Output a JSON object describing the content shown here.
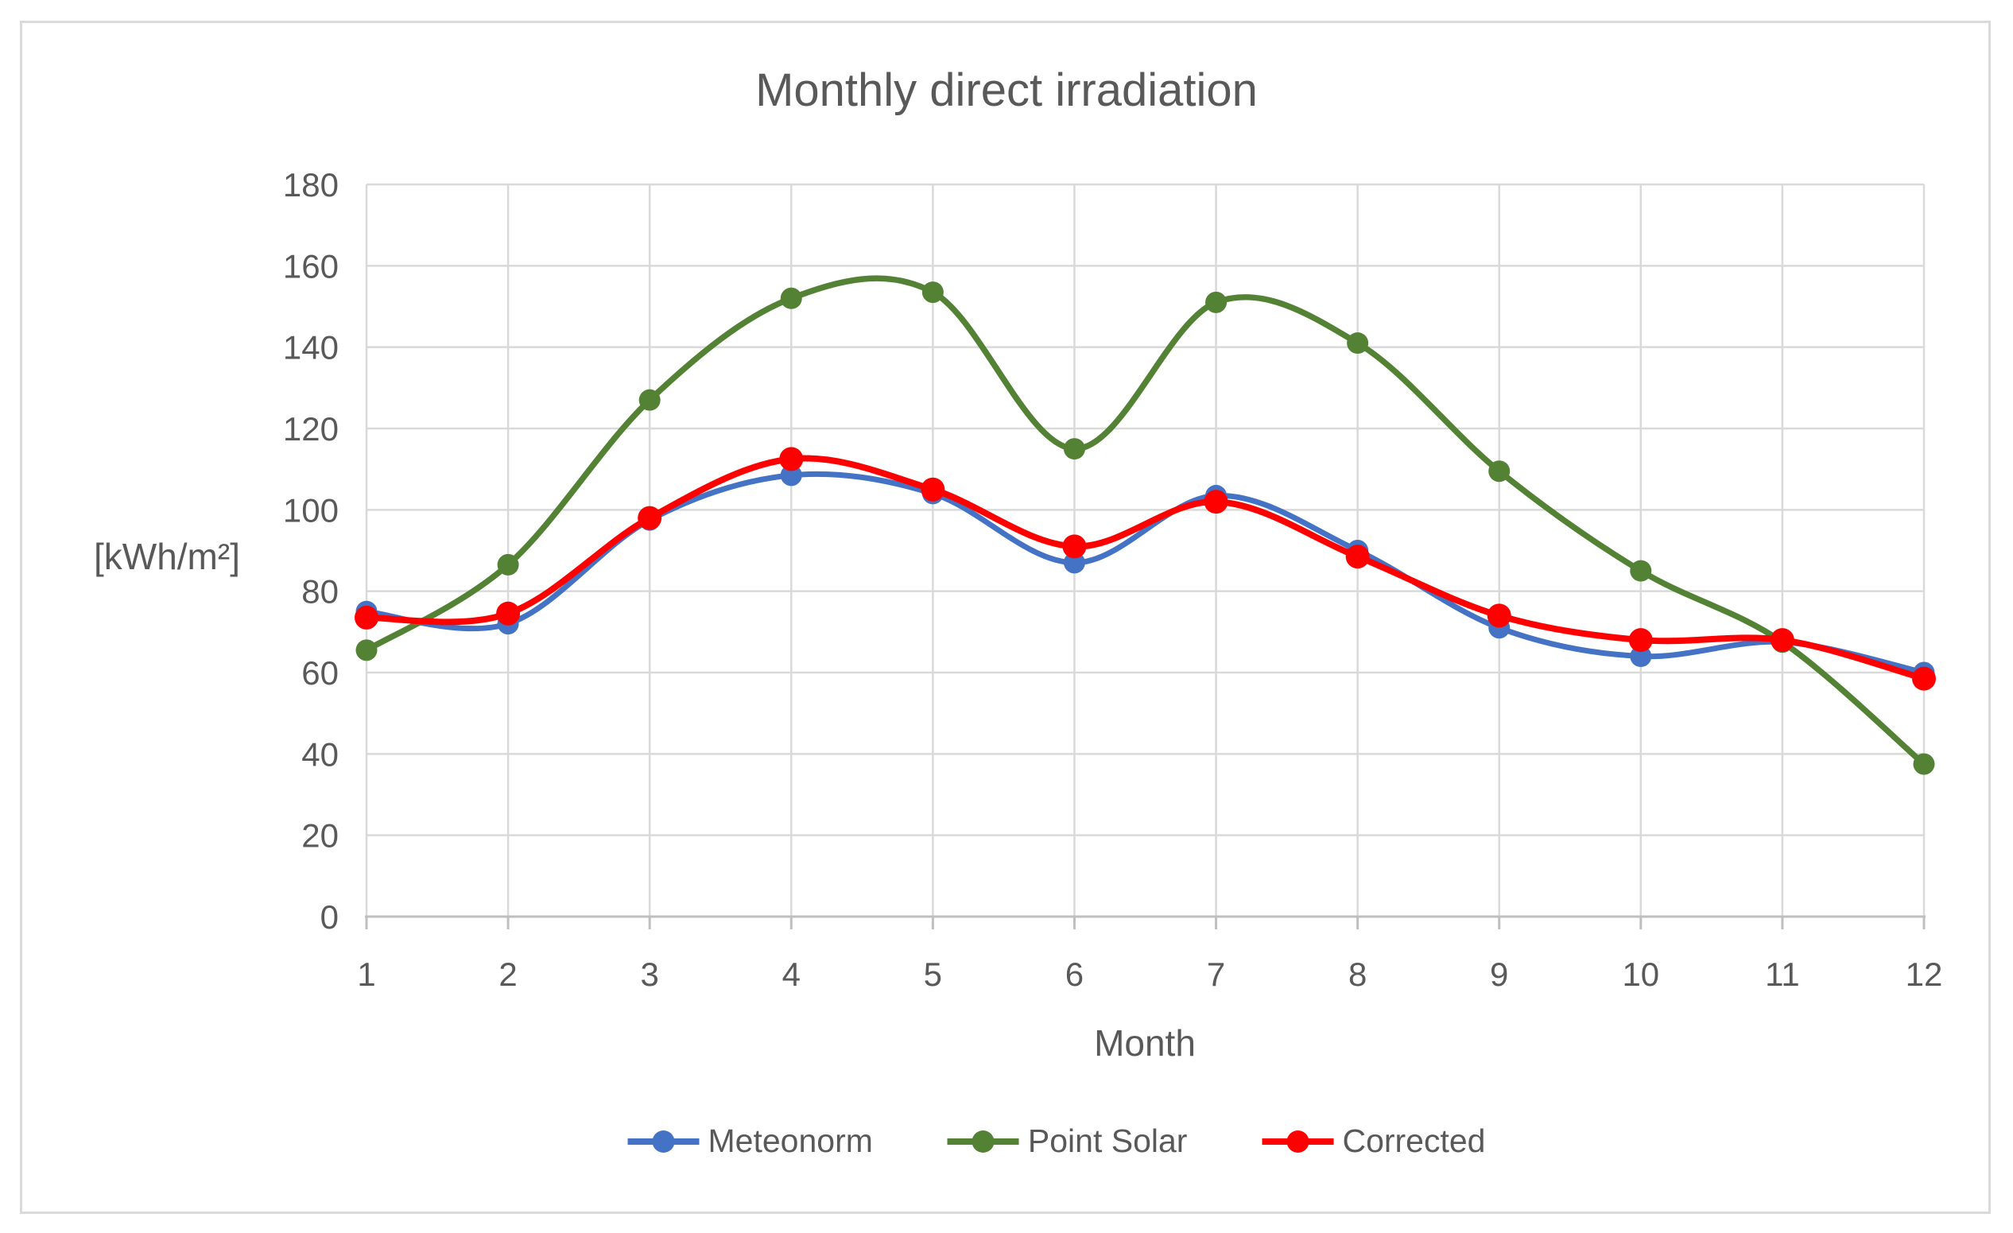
{
  "chart_data": {
    "type": "line",
    "title": "Monthly direct irradiation",
    "xlabel": "Month",
    "ylabel": "[kWh/m²]",
    "x": [
      1,
      2,
      3,
      4,
      5,
      6,
      7,
      8,
      9,
      10,
      11,
      12
    ],
    "xtick_labels": [
      "1",
      "2",
      "3",
      "4",
      "5",
      "6",
      "7",
      "8",
      "9",
      "10",
      "11",
      "12"
    ],
    "ylim": [
      0,
      180
    ],
    "yticks": [
      0,
      20,
      40,
      60,
      80,
      100,
      120,
      140,
      160,
      180
    ],
    "grid": true,
    "smooth": true,
    "legend_position": "bottom",
    "series": [
      {
        "name": "Meteonorm",
        "color": "#4472C4",
        "values": [
          75,
          72,
          97.5,
          108.5,
          104,
          87,
          103.5,
          90,
          71,
          64,
          67.5,
          60
        ]
      },
      {
        "name": "Point Solar",
        "color": "#548235",
        "values": [
          65.5,
          86.5,
          127,
          152,
          153.5,
          115,
          151,
          141,
          109.5,
          85,
          67.5,
          37.5
        ]
      },
      {
        "name": "Corrected",
        "color": "#FF0000",
        "values": [
          73.5,
          74.5,
          98,
          112.5,
          105,
          91,
          102,
          88.5,
          74,
          68,
          68,
          58.5
        ]
      }
    ]
  },
  "colors": {
    "background": "#FFFFFF",
    "frame_border": "#DADADA",
    "gridline": "#D9D9D9",
    "axis_line": "#BFBFBF",
    "text": "#595959"
  }
}
